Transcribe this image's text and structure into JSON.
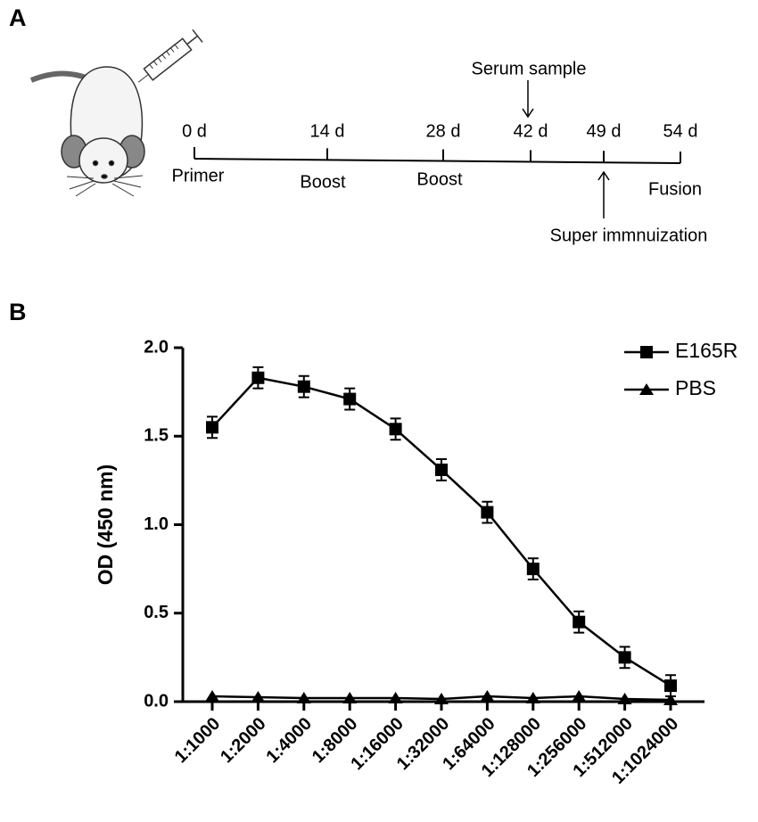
{
  "panel_a": {
    "label": "A",
    "timeline": [
      "0 d",
      "14 d",
      "28 d",
      "42 d",
      "49 d",
      "54 d"
    ],
    "events": [
      "Primer",
      "Boost",
      "Boost",
      "Fusion"
    ],
    "serum_note": "Serum sample",
    "super_note": "Super immnuization"
  },
  "panel_b_label": "B",
  "chart_data": {
    "type": "line",
    "ylabel": "OD (450 nm)",
    "categories": [
      "1:1000",
      "1:2000",
      "1:4000",
      "1:8000",
      "1:16000",
      "1:32000",
      "1:64000",
      "1:128000",
      "1:256000",
      "1:512000",
      "1:1024000"
    ],
    "series": [
      {
        "name": "E165R",
        "color": "#000000",
        "marker": "square",
        "values": [
          1.55,
          1.83,
          1.78,
          1.71,
          1.54,
          1.31,
          1.07,
          0.75,
          0.45,
          0.25,
          0.09
        ],
        "errors": [
          0.06,
          0.06,
          0.06,
          0.06,
          0.06,
          0.06,
          0.06,
          0.06,
          0.06,
          0.06,
          0.06
        ]
      },
      {
        "name": "PBS",
        "color": "#000000",
        "marker": "triangle",
        "values": [
          0.03,
          0.025,
          0.02,
          0.02,
          0.02,
          0.015,
          0.03,
          0.02,
          0.03,
          0.015,
          0.01
        ]
      }
    ],
    "ylim": [
      0,
      2
    ],
    "yticks": [
      {
        "value": 0,
        "label": "0.0"
      },
      0.5,
      {
        "value": 1,
        "label": "1.0"
      },
      1.5,
      {
        "value": 2,
        "label": "2.0"
      }
    ],
    "legend": "upper right"
  }
}
